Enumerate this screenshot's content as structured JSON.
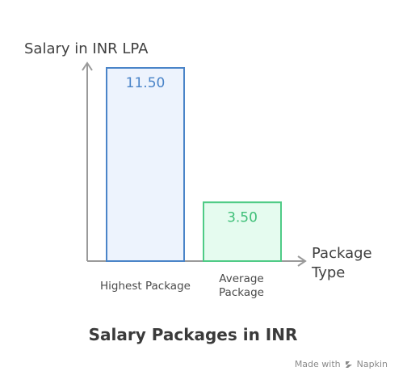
{
  "chart_data": {
    "type": "bar",
    "title": "Salary Packages in INR",
    "ylabel": "Salary in INR LPA",
    "xlabel": [
      "Package",
      "Type"
    ],
    "categories": [
      [
        "Highest Package"
      ],
      [
        "Average",
        "Package"
      ]
    ],
    "values": [
      11.5,
      3.5
    ],
    "value_labels": [
      "11.50",
      "3.50"
    ],
    "ylim": [
      0,
      12
    ],
    "grid": false,
    "colors": [
      {
        "fill": "#edf3fd",
        "stroke": "#4a84c8",
        "text": "#4a84c8"
      },
      {
        "fill": "#e5fbef",
        "stroke": "#4fcb86",
        "text": "#3fbf78"
      }
    ],
    "axis_color": "#9a9a9a"
  },
  "footer": {
    "made_with": "Made with",
    "brand": "Napkin",
    "brand_icon": "napkin-logo-icon"
  }
}
